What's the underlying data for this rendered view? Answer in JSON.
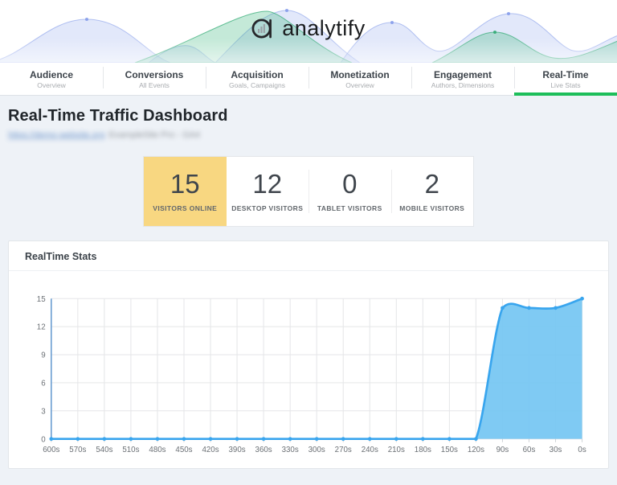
{
  "header": {
    "logo_text": "analytify"
  },
  "nav": {
    "tabs": [
      {
        "label": "Audience",
        "sublabel": "Overview",
        "active": false
      },
      {
        "label": "Conversions",
        "sublabel": "All Events",
        "active": false
      },
      {
        "label": "Acquisition",
        "sublabel": "Goals, Campaigns",
        "active": false
      },
      {
        "label": "Monetization",
        "sublabel": "Overview",
        "active": false
      },
      {
        "label": "Engagement",
        "sublabel": "Authors, Dimensions",
        "active": false
      },
      {
        "label": "Real-Time",
        "sublabel": "Live Stats",
        "active": true
      }
    ],
    "active_color": "#1dbe5a"
  },
  "page": {
    "title": "Real-Time Traffic Dashboard",
    "redacted_link_text": "https://demo-website.org",
    "redacted_meta_text": "ExampleSite Pro - GA4"
  },
  "stats": {
    "highlight_color": "#f8d781",
    "cards": [
      {
        "value": "15",
        "label": "VISITORS ONLINE",
        "highlighted": true
      },
      {
        "value": "12",
        "label": "DESKTOP VISITORS",
        "highlighted": false
      },
      {
        "value": "0",
        "label": "TABLET VISITORS",
        "highlighted": false
      },
      {
        "value": "2",
        "label": "MOBILE VISITORS",
        "highlighted": false
      }
    ]
  },
  "panel": {
    "title": "RealTime Stats"
  },
  "chart_data": {
    "type": "area",
    "title": "RealTime Stats",
    "x_labels": [
      "600s",
      "570s",
      "540s",
      "510s",
      "480s",
      "450s",
      "420s",
      "390s",
      "360s",
      "330s",
      "300s",
      "270s",
      "240s",
      "210s",
      "180s",
      "150s",
      "120s",
      "90s",
      "60s",
      "30s",
      "0s"
    ],
    "values": [
      0,
      0,
      0,
      0,
      0,
      0,
      0,
      0,
      0,
      0,
      0,
      0,
      0,
      0,
      0,
      0,
      0,
      14,
      14,
      14,
      15
    ],
    "y_ticks": [
      0,
      3,
      6,
      9,
      12,
      15
    ],
    "ylim": [
      0,
      15
    ],
    "xlabel": "",
    "ylabel": "",
    "grid": true,
    "legend": false,
    "colors": {
      "line": "#38a5ee",
      "fill": "#74c6f2",
      "dot": "#38a5ee",
      "y_axis": "#6e9fd2",
      "grid": "#e5e6e8",
      "tick": "#cfd3d7",
      "label": "#6b7075"
    }
  }
}
